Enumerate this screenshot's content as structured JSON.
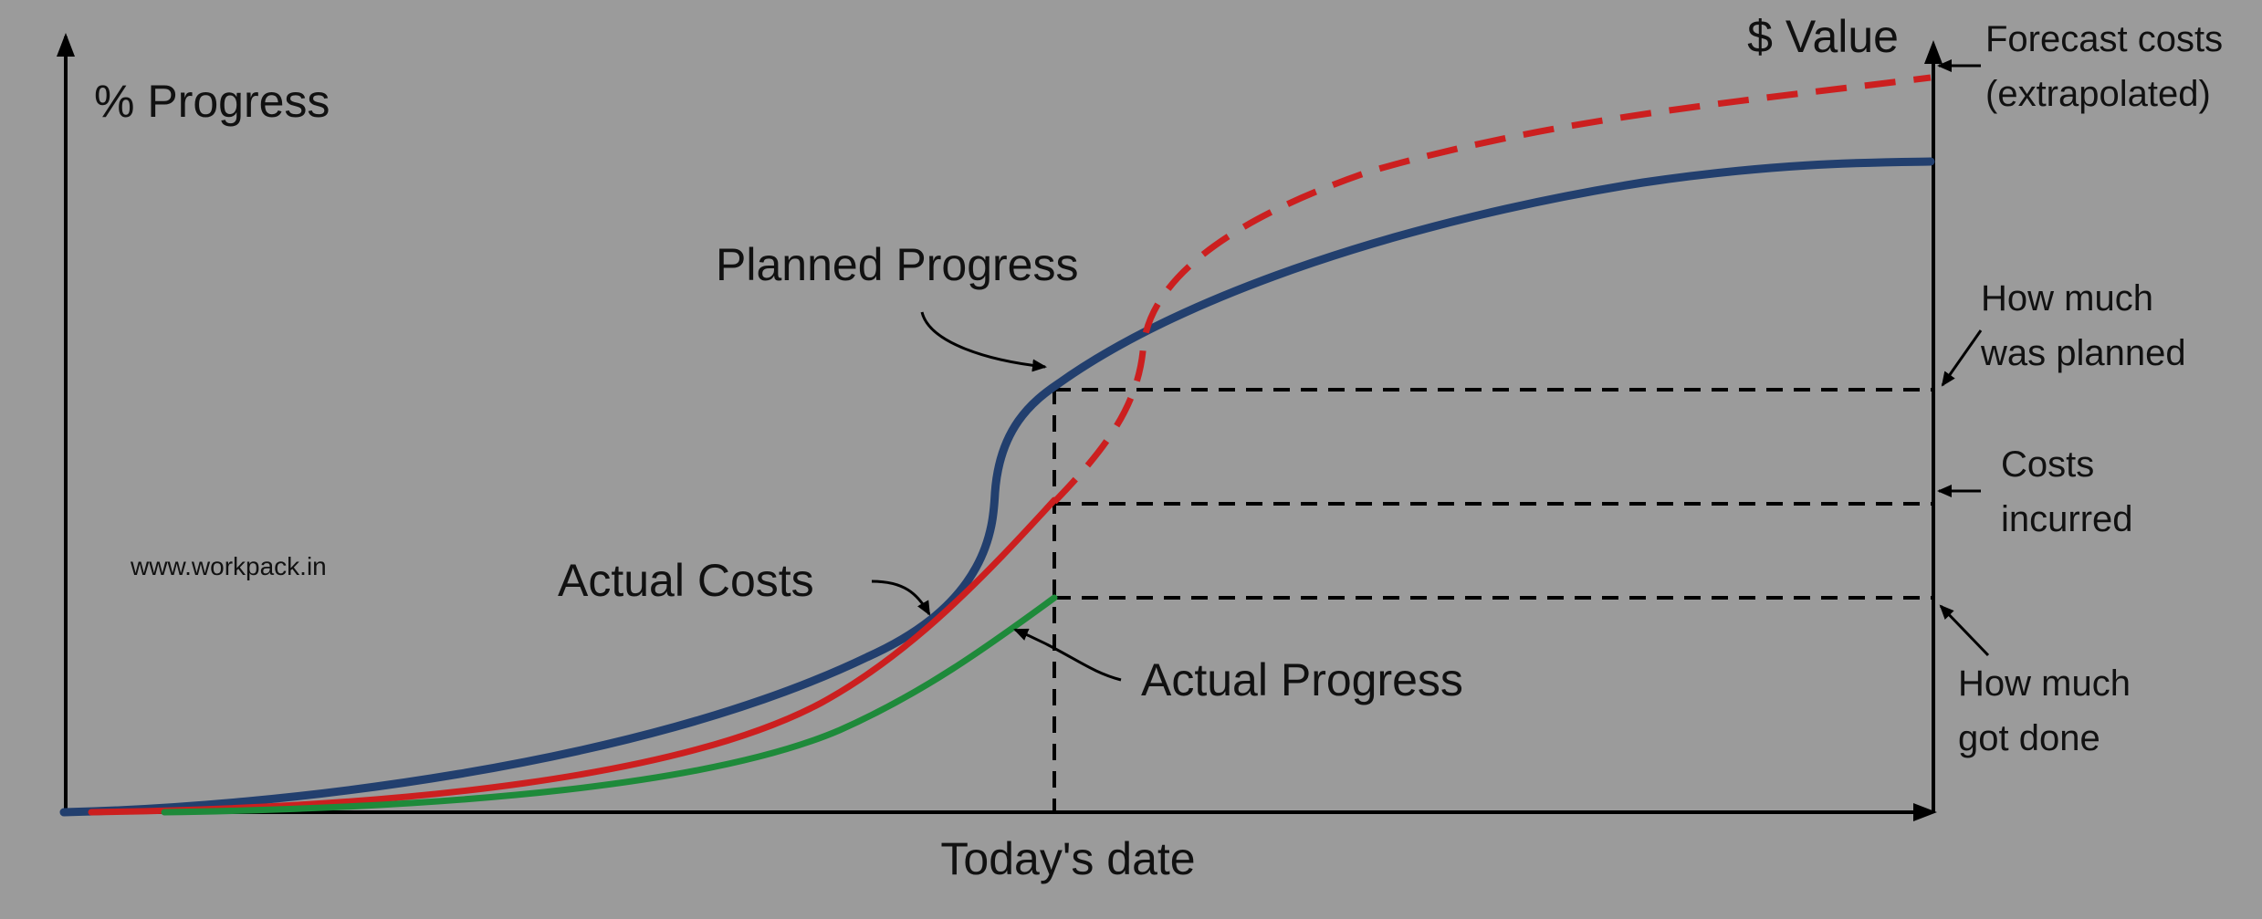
{
  "labels": {
    "y_axis_left": "% Progress",
    "y_axis_right": "$ Value",
    "x_axis": "Today's date",
    "planned_progress": "Planned Progress",
    "actual_costs": "Actual Costs",
    "actual_progress": "Actual Progress",
    "watermark": "www.workpack.in"
  },
  "annotations": {
    "forecast": [
      "Forecast costs",
      "(extrapolated)"
    ],
    "planned": [
      "How much",
      "was planned"
    ],
    "costs": [
      "Costs",
      "incurred"
    ],
    "done": [
      "How much",
      "got done"
    ]
  },
  "colors": {
    "background": "#9b9b9b",
    "planned": "#223f6e",
    "costs": "#cc1f1f",
    "progress": "#1e8a3a",
    "axis": "#000000"
  }
}
